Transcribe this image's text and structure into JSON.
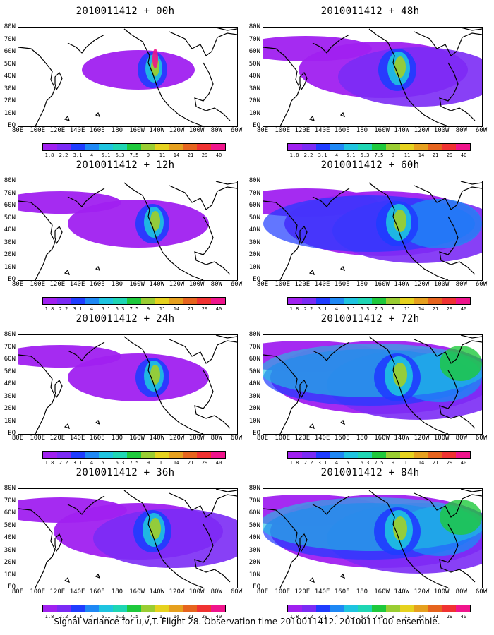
{
  "figure_caption": "Signal Variance for u,v,T. Flight 28. Observation time 2010011412. 2010011100 ensemble.",
  "lat_labels": [
    "80N",
    "70N",
    "60N",
    "50N",
    "40N",
    "30N",
    "20N",
    "10N",
    "EQ"
  ],
  "lon_labels": [
    "80E",
    "100E",
    "120E",
    "140E",
    "160E",
    "180",
    "160W",
    "140W",
    "120W",
    "100W",
    "80W",
    "60W"
  ],
  "colorbar": {
    "levels": [
      "1.8",
      "2.2",
      "3.1",
      "4",
      "5.1",
      "6.3",
      "7.5",
      "9",
      "11",
      "14",
      "21",
      "29",
      "40"
    ],
    "colors": [
      "#a020f0",
      "#7b2bf5",
      "#1f3cff",
      "#1e88f5",
      "#1ec4e0",
      "#1ed6b4",
      "#1ec93c",
      "#9acd32",
      "#e6d21e",
      "#e6a01e",
      "#e6641e",
      "#f03232",
      "#f0148c"
    ]
  },
  "panels": [
    {
      "title": "2010011412 + 00h",
      "lead": 0,
      "level": 1
    },
    {
      "title": "2010011412 + 48h",
      "lead": 48,
      "level": 3
    },
    {
      "title": "2010011412 + 12h",
      "lead": 12,
      "level": 2
    },
    {
      "title": "2010011412 + 60h",
      "lead": 60,
      "level": 4
    },
    {
      "title": "2010011412 + 24h",
      "lead": 24,
      "level": 2
    },
    {
      "title": "2010011412 + 72h",
      "lead": 72,
      "level": 5
    },
    {
      "title": "2010011412 + 36h",
      "lead": 36,
      "level": 3
    },
    {
      "title": "2010011412 + 84h",
      "lead": 84,
      "level": 5
    }
  ]
}
